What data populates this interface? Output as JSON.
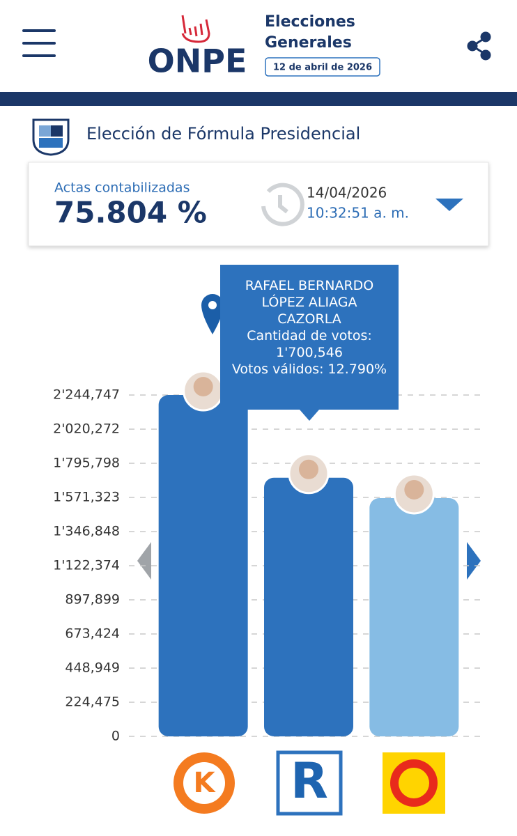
{
  "header": {
    "logo": "ONPE",
    "line1": "Elecciones",
    "line2": "Generales",
    "date": "12 de abril de 2026"
  },
  "section_title": "Elección de Fórmula Presidencial",
  "card": {
    "label": "Actas contabilizadas",
    "percent": "75.804 %",
    "date": "14/04/2026",
    "time": "10:32:51 a. m."
  },
  "party_logos": [
    "K",
    "R"
  ],
  "chart_data": {
    "type": "bar",
    "categories": [
      null,
      null,
      null
    ],
    "values": [
      2244747,
      1700546,
      1567000
    ],
    "value_labels": [
      null,
      "1'700,546",
      null
    ],
    "colors": [
      "#2d72bd",
      "#2d72bd",
      "#86bce4"
    ],
    "ylim": [
      0,
      2244747
    ],
    "yticks": [
      0,
      {
        "value": 224475,
        "label": "224,475"
      },
      {
        "value": 448949,
        "label": "448,949"
      },
      {
        "value": 673424,
        "label": "673,424"
      },
      {
        "value": 897899,
        "label": "897,899"
      },
      {
        "value": 1122374,
        "label": "1'122,374"
      },
      {
        "value": 1346848,
        "label": "1'346,848"
      },
      {
        "value": 1571323,
        "label": "1'571,323"
      },
      {
        "value": 1795798,
        "label": "1'795,798"
      },
      {
        "value": 2020272,
        "label": "2'020,272"
      },
      {
        "value": 2244747,
        "label": "2'244,747"
      }
    ],
    "grid": true,
    "tooltip": {
      "name": "RAFAEL BERNARDO LÓPEZ ALIAGA CAZORLA",
      "votes_caption": "Cantidad de votos:",
      "valid_caption": "Votos válidos:",
      "valid_votes": "12.790%"
    }
  }
}
